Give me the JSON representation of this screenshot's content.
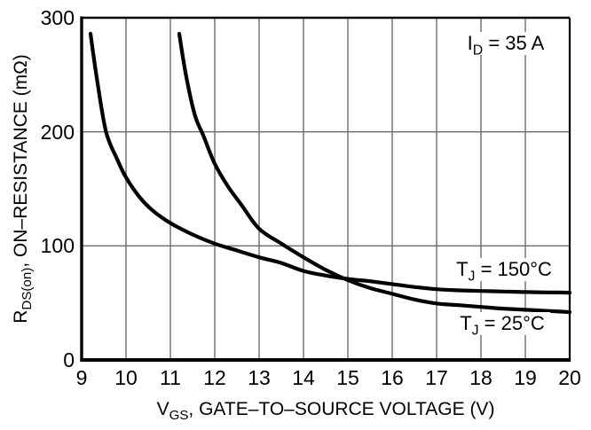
{
  "chart_data": {
    "type": "line",
    "title": "",
    "xlabel": "VGS, GATE–TO–SOURCE VOLTAGE (V)",
    "ylabel": "RDS(on), ON–RESISTANCE (mΩ)",
    "xlabel_parts": {
      "pre": "V",
      "sub": "GS",
      "post": ", GATE–TO–SOURCE VOLTAGE (V)"
    },
    "ylabel_parts": {
      "pre": "R",
      "sub": "DS(on)",
      "post": ", ON–RESISTANCE (mΩ)"
    },
    "xlim": [
      9,
      20
    ],
    "ylim": [
      0,
      300
    ],
    "x_ticks": [
      9,
      10,
      11,
      12,
      13,
      14,
      15,
      16,
      17,
      18,
      19,
      20
    ],
    "y_ticks": [
      0,
      100,
      200,
      300
    ],
    "grid": true,
    "legend_position": "inline-curve-labels",
    "annotation": "ID = 35 A",
    "annotation_parts": {
      "pre": "I",
      "sub": "D",
      "post": " = 35 A"
    },
    "colors": {
      "curve": "#000000",
      "grid": "#6b6b6b",
      "frame": "#000000",
      "text": "#000000",
      "background": "#ffffff"
    },
    "series": [
      {
        "name": "TJ = 150°C",
        "label_parts": {
          "pre": "T",
          "sub": "J",
          "post": " = 150°C"
        },
        "x": [
          9.2,
          9.35,
          9.55,
          9.8,
          10,
          10.3,
          10.6,
          11,
          11.5,
          12,
          12.5,
          13,
          13.5,
          14,
          14.5,
          15,
          15.5,
          16,
          16.5,
          17,
          17.5,
          18,
          18.5,
          19,
          19.5,
          20
        ],
        "y": [
          286,
          245,
          200,
          176,
          160,
          143,
          131,
          120,
          110,
          102,
          96,
          90,
          85,
          78,
          74,
          71,
          69,
          66.5,
          64,
          62,
          61,
          60.5,
          60,
          59.5,
          59.2,
          59
        ]
      },
      {
        "name": "TJ = 25°C",
        "label_parts": {
          "pre": "T",
          "sub": "J",
          "post": " = 25°C"
        },
        "x": [
          11.2,
          11.35,
          11.55,
          11.75,
          12,
          12.3,
          12.6,
          13,
          13.5,
          14,
          14.5,
          15,
          15.5,
          16,
          16.5,
          17,
          17.5,
          18,
          18.5,
          19,
          19.5,
          20
        ],
        "y": [
          286,
          250,
          215,
          196,
          172,
          152,
          136,
          115,
          102,
          90,
          79,
          70,
          63,
          58,
          53,
          49.5,
          48,
          46.5,
          45,
          44,
          43,
          42
        ]
      }
    ]
  }
}
